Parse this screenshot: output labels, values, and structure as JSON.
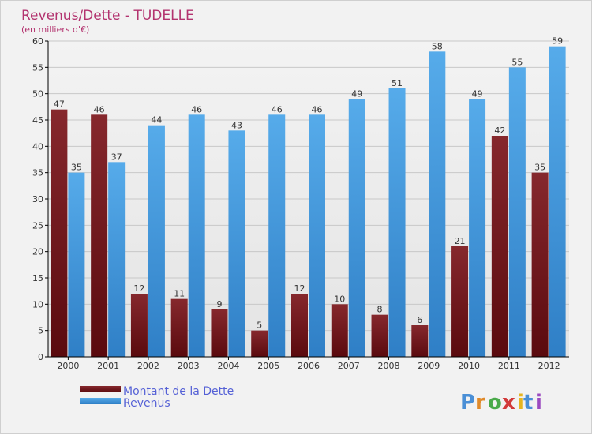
{
  "chart_data": {
    "type": "bar",
    "title": "Revenus/Dette - TUDELLE",
    "subtitle": "(en milliers d'€)",
    "xlabel": "",
    "ylabel": "",
    "ylim": [
      0,
      60
    ],
    "yticks": [
      0,
      5,
      10,
      15,
      20,
      25,
      30,
      35,
      40,
      45,
      50,
      55,
      60
    ],
    "grid": true,
    "legend_position": "bottom-left",
    "categories": [
      "2000",
      "2001",
      "2002",
      "2003",
      "2004",
      "2005",
      "2006",
      "2007",
      "2008",
      "2009",
      "2010",
      "2011",
      "2012"
    ],
    "series": [
      {
        "name": "Montant de la Dette",
        "values": [
          47,
          46,
          12,
          11,
          9,
          5,
          12,
          10,
          8,
          6,
          21,
          42,
          35
        ]
      },
      {
        "name": "Revenus",
        "values": [
          35,
          37,
          44,
          46,
          43,
          46,
          46,
          49,
          51,
          58,
          49,
          55,
          59
        ]
      }
    ]
  },
  "colors": {
    "dette": "#7a1f24",
    "dette_dark": "#5a0d10",
    "revenus": "#4aa3e6",
    "revenus_dark": "#2f84cc",
    "title": "#b3336f",
    "legend_text": "#5561d6"
  },
  "logo": {
    "text": "Proxiti",
    "letters": [
      "P",
      "r",
      "o",
      "x",
      "i",
      "t",
      "i"
    ]
  }
}
